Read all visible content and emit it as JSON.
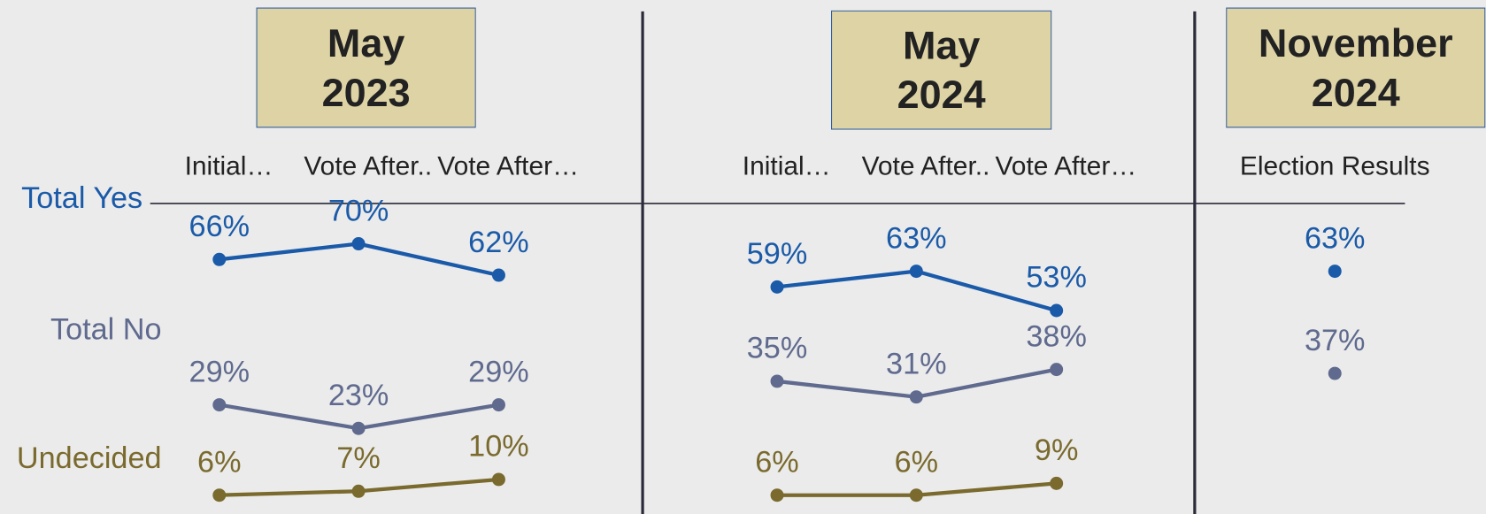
{
  "chart_data": {
    "type": "line",
    "ylim": [
      0,
      100
    ],
    "series": [
      {
        "name": "Total Yes",
        "color": "#1a5aa8"
      },
      {
        "name": "Total No",
        "color": "#5f6a8e"
      },
      {
        "name": "Undecided",
        "color": "#7a6a2e"
      }
    ],
    "panels": [
      {
        "title": "May 2023",
        "categories": [
          "Initial…",
          "Vote After..",
          "Vote After…"
        ],
        "series": [
          {
            "values": [
              66,
              70,
              62
            ],
            "value_labels": [
              "66%",
              "70%",
              "62%"
            ]
          },
          {
            "values": [
              29,
              23,
              29
            ],
            "value_labels": [
              "29%",
              "23%",
              "29%"
            ]
          },
          {
            "values": [
              6,
              7,
              10
            ],
            "value_labels": [
              "6%",
              "7%",
              "10%"
            ]
          }
        ]
      },
      {
        "title": "May 2024",
        "categories": [
          "Initial…",
          "Vote After..",
          "Vote After…"
        ],
        "series": [
          {
            "values": [
              59,
              63,
              53
            ],
            "value_labels": [
              "59%",
              "63%",
              "53%"
            ]
          },
          {
            "values": [
              35,
              31,
              38
            ],
            "value_labels": [
              "35%",
              "31%",
              "38%"
            ]
          },
          {
            "values": [
              6,
              6,
              9
            ],
            "value_labels": [
              "6%",
              "6%",
              "9%"
            ]
          }
        ]
      },
      {
        "title": "November 2024",
        "categories": [
          "Election Results"
        ],
        "series": [
          {
            "values": [
              63
            ],
            "value_labels": [
              "63%"
            ]
          },
          {
            "values": [
              37
            ],
            "value_labels": [
              "37%"
            ]
          }
        ]
      }
    ]
  }
}
